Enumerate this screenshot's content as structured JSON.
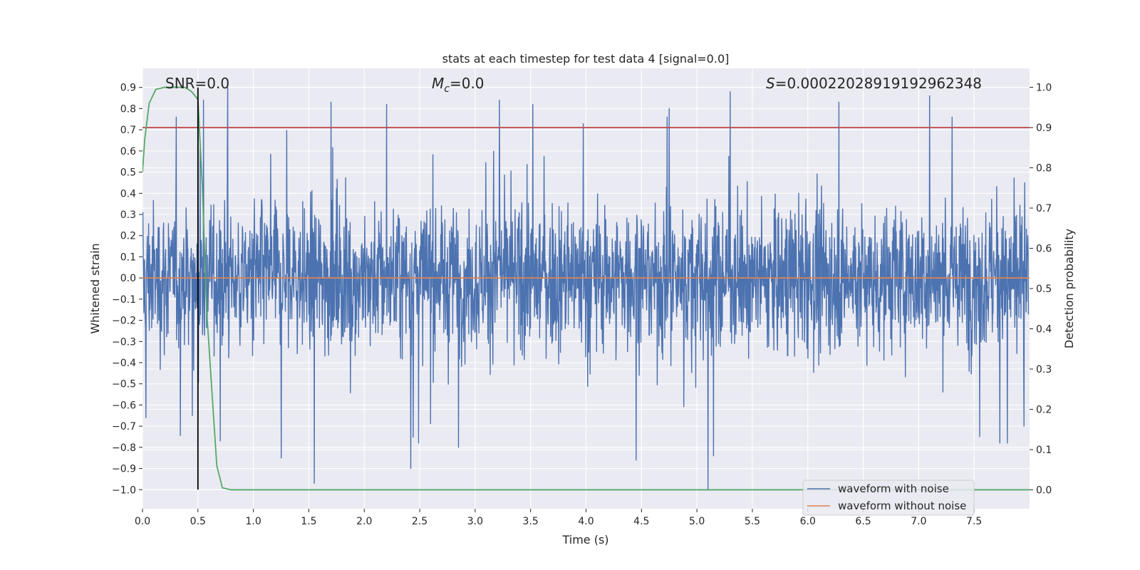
{
  "chart_data": {
    "type": "line",
    "title": "stats at each timestep for test data 4 [signal=0.0]",
    "xlabel": "Time (s)",
    "ylabel": "Whitened strain",
    "y2label": "Detection probability",
    "xlim": [
      0.0,
      8.0
    ],
    "ylim": [
      -1.09,
      0.99
    ],
    "y2lim": [
      -0.047,
      1.047
    ],
    "x_ticks": [
      "0.0",
      "0.5",
      "1.0",
      "1.5",
      "2.0",
      "2.5",
      "3.0",
      "3.5",
      "4.0",
      "4.5",
      "5.0",
      "5.5",
      "6.0",
      "6.5",
      "7.0",
      "7.5"
    ],
    "y_ticks": [
      "0.9",
      "0.8",
      "0.7",
      "0.6",
      "0.5",
      "0.4",
      "0.3",
      "0.2",
      "0.1",
      "0.0",
      "−0.1",
      "−0.2",
      "−0.3",
      "−0.4",
      "−0.5",
      "−0.6",
      "−0.7",
      "−0.8",
      "−0.9",
      "−1.0"
    ],
    "y2_ticks": [
      "1.0",
      "0.9",
      "0.8",
      "0.7",
      "0.6",
      "0.5",
      "0.4",
      "0.3",
      "0.2",
      "0.1",
      "0.0"
    ],
    "annotations": {
      "snr_label": "SNR=0.0",
      "mc_symbol": "M",
      "mc_sub": "c",
      "mc_value": "=0.0",
      "s_symbol": "S",
      "s_value": "=0.0002202891919296234​8"
    },
    "series": [
      {
        "name": "waveform with noise",
        "color": "#4c72b0",
        "axis": "left",
        "note": "noise waveform spanning approx -1.0 to 0.9 over 0–8 s",
        "peaks_high": [
          [
            0.03,
            0.5
          ],
          [
            0.5,
            0.72
          ],
          [
            0.52,
            0.61
          ],
          [
            0.55,
            0.84
          ],
          [
            0.77,
            0.9
          ],
          [
            1.7,
            0.83
          ],
          [
            2.2,
            0.82
          ],
          [
            3.22,
            0.84
          ],
          [
            3.52,
            0.82
          ],
          [
            4.75,
            0.8
          ],
          [
            5.3,
            0.88
          ],
          [
            6.28,
            0.83
          ],
          [
            7.1,
            0.86
          ],
          [
            7.3,
            0.76
          ]
        ],
        "peaks_low": [
          [
            0.03,
            -0.66
          ],
          [
            0.45,
            -0.65
          ],
          [
            0.7,
            -0.77
          ],
          [
            1.25,
            -0.85
          ],
          [
            1.55,
            -0.97
          ],
          [
            2.42,
            -0.9
          ],
          [
            2.85,
            -0.8
          ],
          [
            4.45,
            -0.86
          ],
          [
            5.1,
            -1.0
          ],
          [
            5.15,
            -0.84
          ],
          [
            7.55,
            -0.75
          ],
          [
            7.8,
            -0.78
          ],
          [
            7.95,
            -0.7
          ]
        ]
      },
      {
        "name": "waveform without noise",
        "color": "#dd8452",
        "axis": "left",
        "x": [
          0.0,
          8.0
        ],
        "values": [
          0.0,
          0.0
        ]
      },
      {
        "name": "detection probability",
        "color": "#55a868",
        "axis": "right",
        "x": [
          0.0,
          0.02,
          0.06,
          0.12,
          0.2,
          0.3,
          0.38,
          0.44,
          0.5,
          0.54,
          0.58,
          0.62,
          0.67,
          0.72,
          0.8,
          1.0,
          8.0
        ],
        "values": [
          0.79,
          0.87,
          0.96,
          0.995,
          1.0,
          1.0,
          1.0,
          0.99,
          0.97,
          0.75,
          0.44,
          0.27,
          0.06,
          0.005,
          0.0,
          0.0,
          0.0
        ]
      },
      {
        "name": "threshold",
        "color": "#c44e52",
        "axis": "right",
        "x": [
          0.0,
          8.0
        ],
        "values": [
          0.9,
          0.9
        ]
      },
      {
        "name": "marker",
        "color": "#000000",
        "axis": "left",
        "x": [
          0.5,
          0.5
        ],
        "values": [
          -1.0,
          0.9
        ]
      }
    ],
    "legend": {
      "location": "lower right",
      "entries": [
        "waveform with noise",
        "waveform without noise"
      ]
    },
    "grid": true
  },
  "colors": {
    "plot_bg": "#eaeaf2",
    "grid": "#ffffff",
    "noise": "#4c72b0",
    "clean": "#dd8452",
    "prob": "#55a868",
    "threshold": "#c44e52",
    "marker": "#000000"
  }
}
